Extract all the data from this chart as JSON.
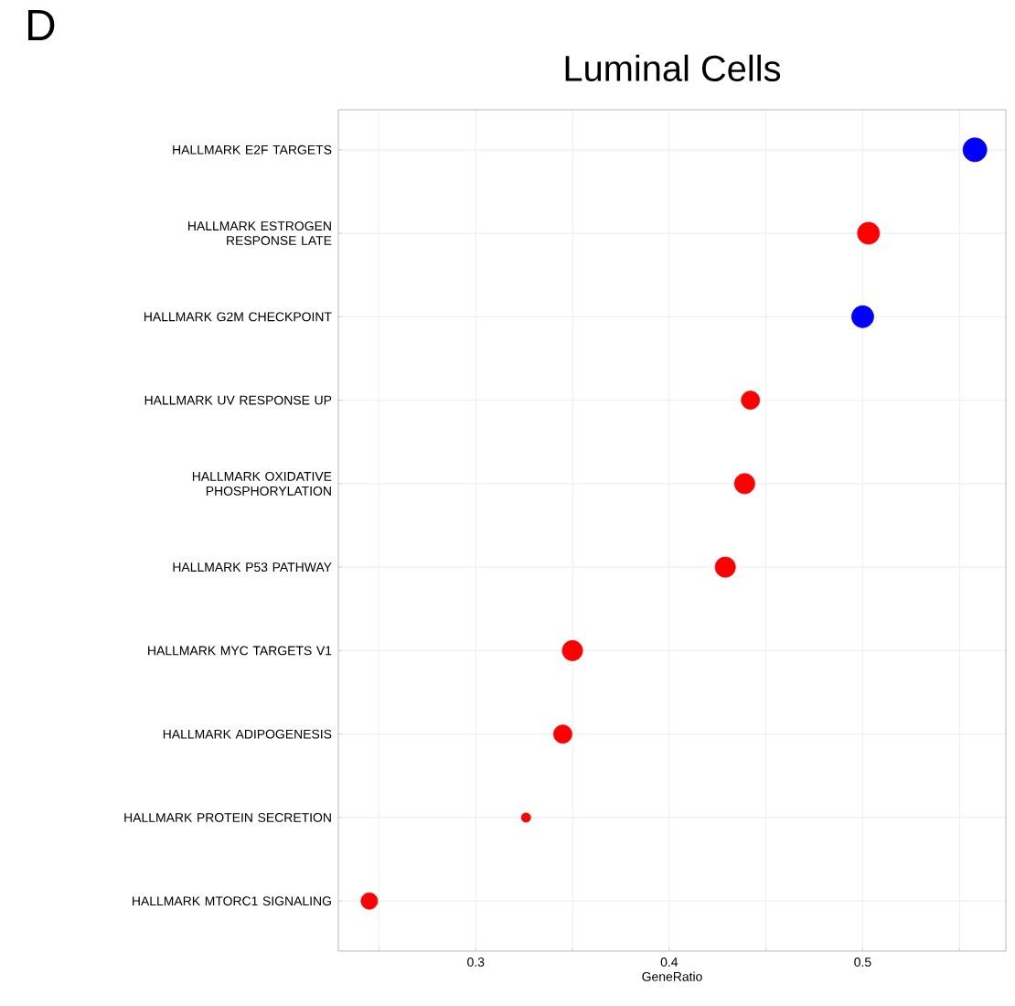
{
  "chart_data": {
    "type": "bubble",
    "title": "Luminal Cells",
    "xlabel": "GeneRatio",
    "orientation": "horizontal",
    "annotations": [
      "D"
    ],
    "categories": [
      "HALLMARK E2F TARGETS",
      "HALLMARK ESTROGEN RESPONSE LATE",
      "HALLMARK G2M CHECKPOINT",
      "HALLMARK UV RESPONSE UP",
      "HALLMARK OXIDATIVE PHOSPHORYLATION",
      "HALLMARK P53 PATHWAY",
      "HALLMARK MYC TARGETS V1",
      "HALLMARK ADIPOGENESIS",
      "HALLMARK PROTEIN SECRETION",
      "HALLMARK MTORC1 SIGNALING"
    ],
    "values": [
      0.558,
      0.503,
      0.5,
      0.442,
      0.439,
      0.429,
      0.35,
      0.345,
      0.326,
      0.245
    ],
    "sizes": [
      1,
      0.85,
      0.85,
      0.59,
      0.72,
      0.72,
      0.72,
      0.59,
      0.15,
      0.48
    ],
    "colors": [
      "#0000ff",
      "#ff0000",
      "#0000ff",
      "#ff0000",
      "#ff0000",
      "#ff0000",
      "#ff0000",
      "#ff0000",
      "#ff0000",
      "#ff0000"
    ],
    "xlim": [
      0.229,
      0.574
    ],
    "xticks": [
      {
        "value": 0.25,
        "label": null
      },
      0.3,
      {
        "value": 0.35,
        "label": null
      },
      0.4,
      {
        "value": 0.45,
        "label": null
      },
      0.5,
      {
        "value": 0.55,
        "label": null
      }
    ],
    "grid": true
  }
}
